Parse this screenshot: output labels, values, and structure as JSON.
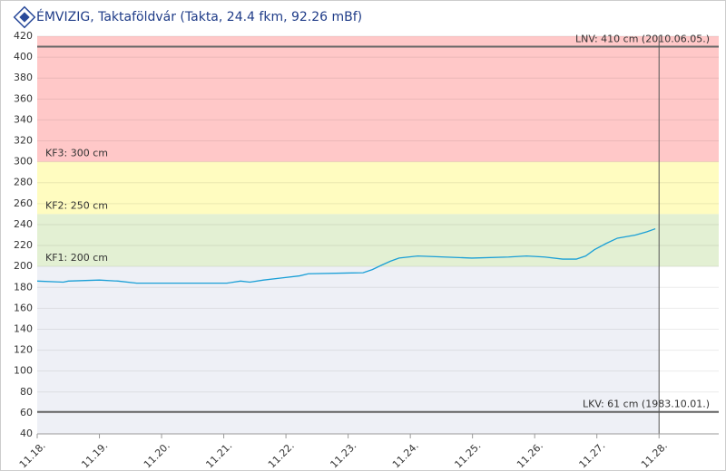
{
  "chart_data": {
    "type": "line",
    "title": "ÉMVIZIG, Taktaföldvár (Takta, 24.4 fkm, 92.26 mBf)",
    "x": [
      0,
      0.42,
      0.5,
      1.0,
      1.3,
      1.6,
      2.32,
      3.05,
      3.27,
      3.42,
      3.64,
      3.93,
      4.22,
      4.36,
      5.24,
      5.39,
      5.53,
      5.68,
      5.82,
      6.12,
      6.55,
      6.99,
      7.58,
      7.87,
      8.16,
      8.45,
      8.67,
      8.82,
      8.96,
      9.15,
      9.33,
      9.62,
      9.8,
      9.94
    ],
    "series": [
      {
        "color": "#1a9fd6",
        "values": [
          186,
          185,
          186,
          187,
          186,
          184,
          184,
          184,
          186,
          185,
          187,
          189,
          191,
          193,
          194,
          197,
          201,
          205,
          208,
          210,
          209,
          208,
          209,
          210,
          209,
          207,
          207,
          210,
          216,
          222,
          227,
          230,
          233,
          236
        ]
      }
    ],
    "xlim": [
      0,
      10.96
    ],
    "xticks": [
      {
        "value": 0,
        "label": "11.18."
      },
      {
        "value": 1,
        "label": "11.19."
      },
      {
        "value": 2,
        "label": "11.20."
      },
      {
        "value": 3,
        "label": "11.21."
      },
      {
        "value": 4,
        "label": "11.22."
      },
      {
        "value": 5,
        "label": "11.23."
      },
      {
        "value": 6,
        "label": "11.24."
      },
      {
        "value": 7,
        "label": "11.25."
      },
      {
        "value": 8,
        "label": "11.26."
      },
      {
        "value": 9,
        "label": "11.27."
      },
      {
        "value": 10,
        "label": "11.28."
      }
    ],
    "ylim": [
      40,
      420
    ],
    "yticks": [
      40,
      60,
      80,
      100,
      120,
      140,
      160,
      180,
      200,
      220,
      240,
      260,
      280,
      300,
      320,
      340,
      360,
      380,
      400,
      420
    ],
    "grid": true,
    "bands": [
      {
        "from": 300,
        "to": 420,
        "color": "#ffc8c8",
        "label": "KF3: 300 cm"
      },
      {
        "from": 250,
        "to": 300,
        "color": "#fffcc0",
        "label": "KF2: 250 cm"
      },
      {
        "from": 200,
        "to": 250,
        "color": "#e3f0d3",
        "label": "KF1: 200 cm"
      }
    ],
    "lines": [
      {
        "value": 410,
        "label": "LNV: 410 cm (2010.06.05.)"
      },
      {
        "value": 61,
        "label": "LKV: 61 cm (1983.10.01.)"
      }
    ],
    "marker_x": 10
  }
}
